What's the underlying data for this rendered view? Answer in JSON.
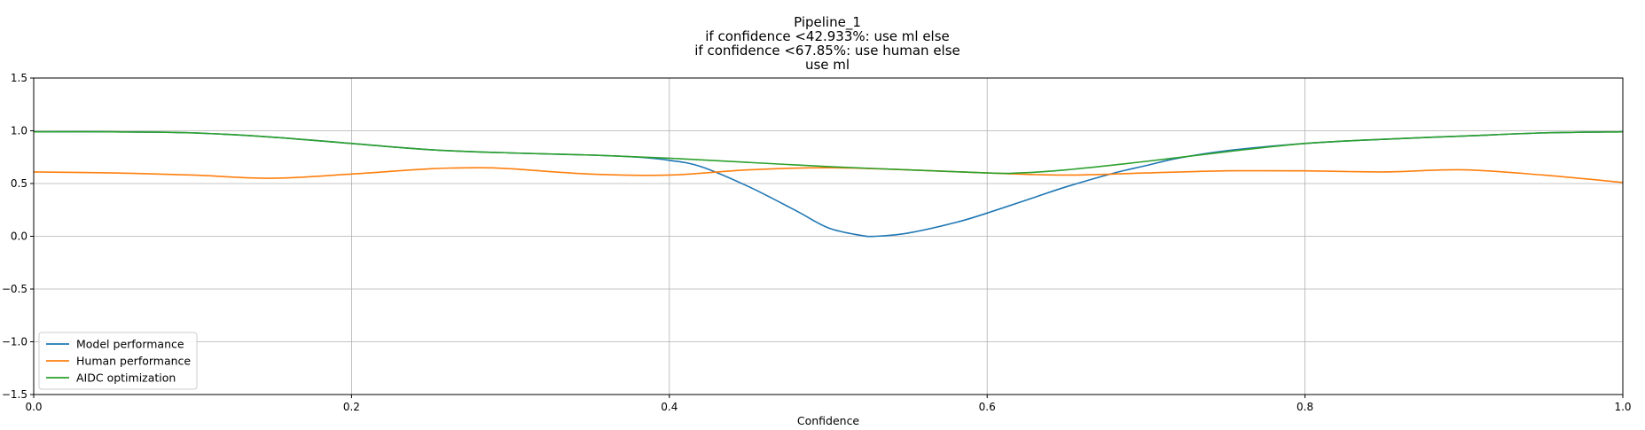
{
  "chart_data": {
    "type": "line",
    "title_lines": [
      "Pipeline_1",
      "if confidence <42.933%: use ml else",
      "if confidence <67.85%: use human else",
      "use ml"
    ],
    "xlabel": "Confidence",
    "ylabel": "",
    "xlim": [
      0.0,
      1.0
    ],
    "ylim": [
      -1.5,
      1.5
    ],
    "xticks": [
      0.0,
      0.2,
      0.4,
      0.6,
      0.8,
      1.0
    ],
    "xtick_labels": [
      "0.0",
      "0.2",
      "0.4",
      "0.6",
      "0.8",
      "1.0"
    ],
    "yticks": [
      -1.5,
      -1.0,
      -0.5,
      0.0,
      0.5,
      1.0,
      1.5
    ],
    "ytick_labels": [
      "−1.5",
      "−1.0",
      "−0.5",
      "0.0",
      "0.5",
      "1.0",
      "1.5"
    ],
    "grid": true,
    "legend_position": "lower-left",
    "series": [
      {
        "name": "Model performance",
        "color": "#1f77b4",
        "x": [
          0.0,
          0.05,
          0.1,
          0.15,
          0.2,
          0.25,
          0.3,
          0.35,
          0.38,
          0.4,
          0.42,
          0.45,
          0.48,
          0.5,
          0.52,
          0.53,
          0.55,
          0.58,
          0.6,
          0.63,
          0.65,
          0.68,
          0.7,
          0.72,
          0.75,
          0.8,
          0.85,
          0.9,
          0.95,
          1.0
        ],
        "y": [
          0.99,
          0.99,
          0.98,
          0.94,
          0.88,
          0.82,
          0.79,
          0.77,
          0.75,
          0.72,
          0.66,
          0.47,
          0.24,
          0.08,
          0.01,
          0.0,
          0.03,
          0.13,
          0.22,
          0.37,
          0.47,
          0.6,
          0.67,
          0.74,
          0.81,
          0.88,
          0.92,
          0.95,
          0.98,
          0.99
        ]
      },
      {
        "name": "Human performance",
        "color": "#ff7f0e",
        "x": [
          0.0,
          0.05,
          0.1,
          0.15,
          0.2,
          0.25,
          0.28,
          0.3,
          0.35,
          0.4,
          0.45,
          0.5,
          0.55,
          0.6,
          0.65,
          0.7,
          0.75,
          0.8,
          0.85,
          0.9,
          0.95,
          1.0
        ],
        "y": [
          0.61,
          0.6,
          0.58,
          0.55,
          0.59,
          0.64,
          0.65,
          0.64,
          0.59,
          0.58,
          0.63,
          0.65,
          0.63,
          0.6,
          0.58,
          0.6,
          0.62,
          0.62,
          0.61,
          0.63,
          0.58,
          0.51
        ]
      },
      {
        "name": "AIDC optimization",
        "color": "#2ca02c",
        "x": [
          0.0,
          0.05,
          0.1,
          0.15,
          0.2,
          0.25,
          0.3,
          0.35,
          0.4,
          0.45,
          0.5,
          0.55,
          0.6,
          0.62,
          0.65,
          0.7,
          0.75,
          0.8,
          0.85,
          0.9,
          0.95,
          1.0
        ],
        "y": [
          0.99,
          0.99,
          0.98,
          0.94,
          0.88,
          0.82,
          0.79,
          0.77,
          0.74,
          0.7,
          0.66,
          0.63,
          0.6,
          0.6,
          0.63,
          0.71,
          0.8,
          0.88,
          0.92,
          0.95,
          0.98,
          0.99
        ]
      }
    ]
  }
}
